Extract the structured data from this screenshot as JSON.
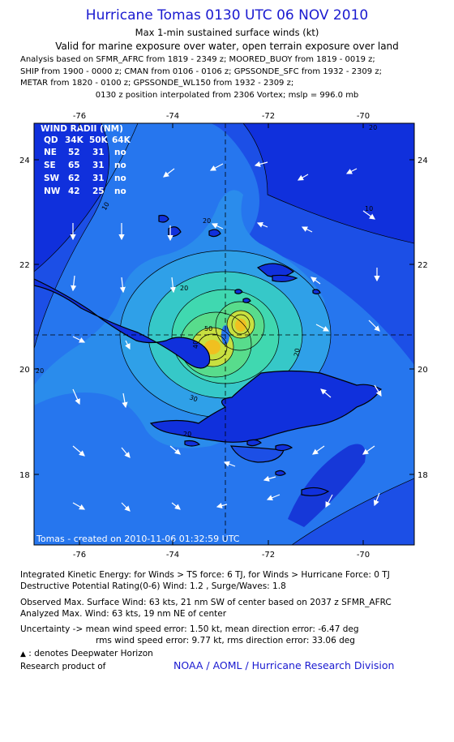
{
  "header": {
    "title": "Hurricane Tomas 0130 UTC 06 NOV 2010",
    "subtitle": "Max 1-min sustained surface winds (kt)",
    "validity": "Valid for marine exposure over water, open terrain exposure over land"
  },
  "analysis_lines": [
    "Analysis based on SFMR_AFRC from 1819 - 2349 z; MOORED_BUOY from 1819 - 0019 z;",
    "SHIP from 1900 - 0000 z; CMAN from 0106 - 0106 z; GPSSONDE_SFC from 1932 - 2309 z;",
    "METAR from 1820 - 0100 z; GPSSONDE_WL150 from 1932 - 2309 z;"
  ],
  "position_note": "0130 z position interpolated from 2306 Vortex; mslp = 996.0 mb",
  "map": {
    "lon_labels": [
      "-76",
      "-74",
      "-72",
      "-70"
    ],
    "lat_labels": [
      "24",
      "22",
      "20",
      "18"
    ],
    "lon_range": [
      -77.5,
      -69.0
    ],
    "lat_range": [
      16.7,
      24.5
    ],
    "center": {
      "lon": -72.8,
      "lat": 20.65
    },
    "contour_labels": [
      "20",
      "10",
      "20",
      "20",
      "20",
      "30",
      "40",
      "50",
      "20",
      "10",
      "20"
    ],
    "credit": "Tomas - created on 2010-11-06 01:32:59 UTC",
    "wind_radii": {
      "title": "WIND RADII (NM)",
      "header": [
        "QD",
        "34K",
        "50K",
        "64K"
      ],
      "rows": [
        [
          "NE",
          "52",
          "31",
          "no"
        ],
        [
          "SE",
          "65",
          "31",
          "no"
        ],
        [
          "SW",
          "62",
          "31",
          "no"
        ],
        [
          "NW",
          "42",
          "25",
          "no"
        ]
      ]
    },
    "colors": {
      "ocean_deep": "#1030dc",
      "band_10": "#1c4fe6",
      "band_20": "#2676ee",
      "band_30": "#2fa0e8",
      "band_40": "#36c8c8",
      "band_50": "#58dc8c",
      "band_60": "#c8e040",
      "core": "#f0c020"
    }
  },
  "footer": {
    "ike": "Integrated Kinetic Energy:  for Winds > TS force: 6 TJ,  for Winds > Hurricane Force: 0 TJ",
    "dpr": "Destructive Potential Rating(0-6)   Wind: 1.2 , Surge/Waves: 1.8",
    "obs_max": "Observed Max. Surface Wind: 63 kts, 21 nm SW of center based on 2037 z SFMR_AFRC",
    "analyzed_max": "Analyzed Max. Wind: 63 kts, 19 nm NE of center",
    "uncertainty": "Uncertainty -> mean wind speed error: 1.50 kt,   mean direction error:  -6.47 deg",
    "rms": "rms wind speed error: 9.77 kt,   rms direction error: 33.06 deg",
    "deepwater": ": denotes Deepwater Horizon",
    "research": "Research product of",
    "org": "NOAA / AOML / Hurricane Research Division"
  }
}
